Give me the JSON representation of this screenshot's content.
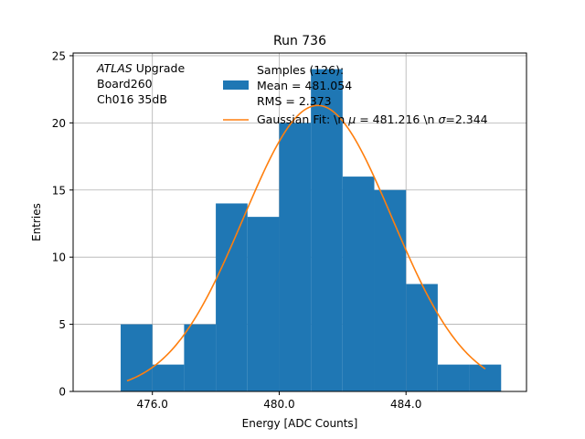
{
  "colors": {
    "bars": "#1f77b4",
    "fit": "#ff7f0e",
    "grid": "#b0b0b0",
    "axis": "#000000"
  },
  "chart_data": {
    "type": "histogram",
    "title": "Run 736",
    "xlabel": "Energy [ADC Counts]",
    "ylabel": "Entries",
    "xlim": [
      473.5,
      487.8
    ],
    "ylim": [
      0,
      25.2
    ],
    "xticks": [
      476.0,
      480.0,
      484.0
    ],
    "xtick_labels": [
      "476.0",
      "480.0",
      "484.0"
    ],
    "yticks": [
      0,
      5,
      10,
      15,
      20,
      25
    ],
    "ytick_labels": [
      "0",
      "5",
      "10",
      "15",
      "20",
      "25"
    ],
    "grid": true,
    "bins": [
      {
        "x0": 475,
        "x1": 476,
        "count": 5
      },
      {
        "x0": 476,
        "x1": 477,
        "count": 2
      },
      {
        "x0": 477,
        "x1": 478,
        "count": 5
      },
      {
        "x0": 478,
        "x1": 479,
        "count": 14
      },
      {
        "x0": 479,
        "x1": 480,
        "count": 13
      },
      {
        "x0": 480,
        "x1": 481,
        "count": 20
      },
      {
        "x0": 481,
        "x1": 482,
        "count": 24
      },
      {
        "x0": 482,
        "x1": 483,
        "count": 16
      },
      {
        "x0": 483,
        "x1": 484,
        "count": 15
      },
      {
        "x0": 484,
        "x1": 485,
        "count": 8
      },
      {
        "x0": 485,
        "x1": 486,
        "count": 2
      },
      {
        "x0": 486,
        "x1": 487,
        "count": 2
      }
    ],
    "fit": {
      "type": "gaussian",
      "mu": 481.216,
      "sigma": 2.344,
      "amplitude": 21.3,
      "x_range": [
        475.2,
        486.5
      ]
    },
    "annotation": {
      "lines": [
        "ATLAS",
        " Upgrade",
        " Board260",
        " Ch016 35dB"
      ]
    },
    "legend": {
      "position": "top-right",
      "entries": [
        {
          "kind": "patch",
          "lines": [
            "Samples (126):",
            " Mean = 481.054",
            " RMS = 2.373"
          ]
        },
        {
          "kind": "line",
          "parts": [
            "Gaussian Fit: \\n ",
            "μ",
            " = 481.216 \\n ",
            "σ",
            "=2.344"
          ]
        }
      ]
    }
  }
}
